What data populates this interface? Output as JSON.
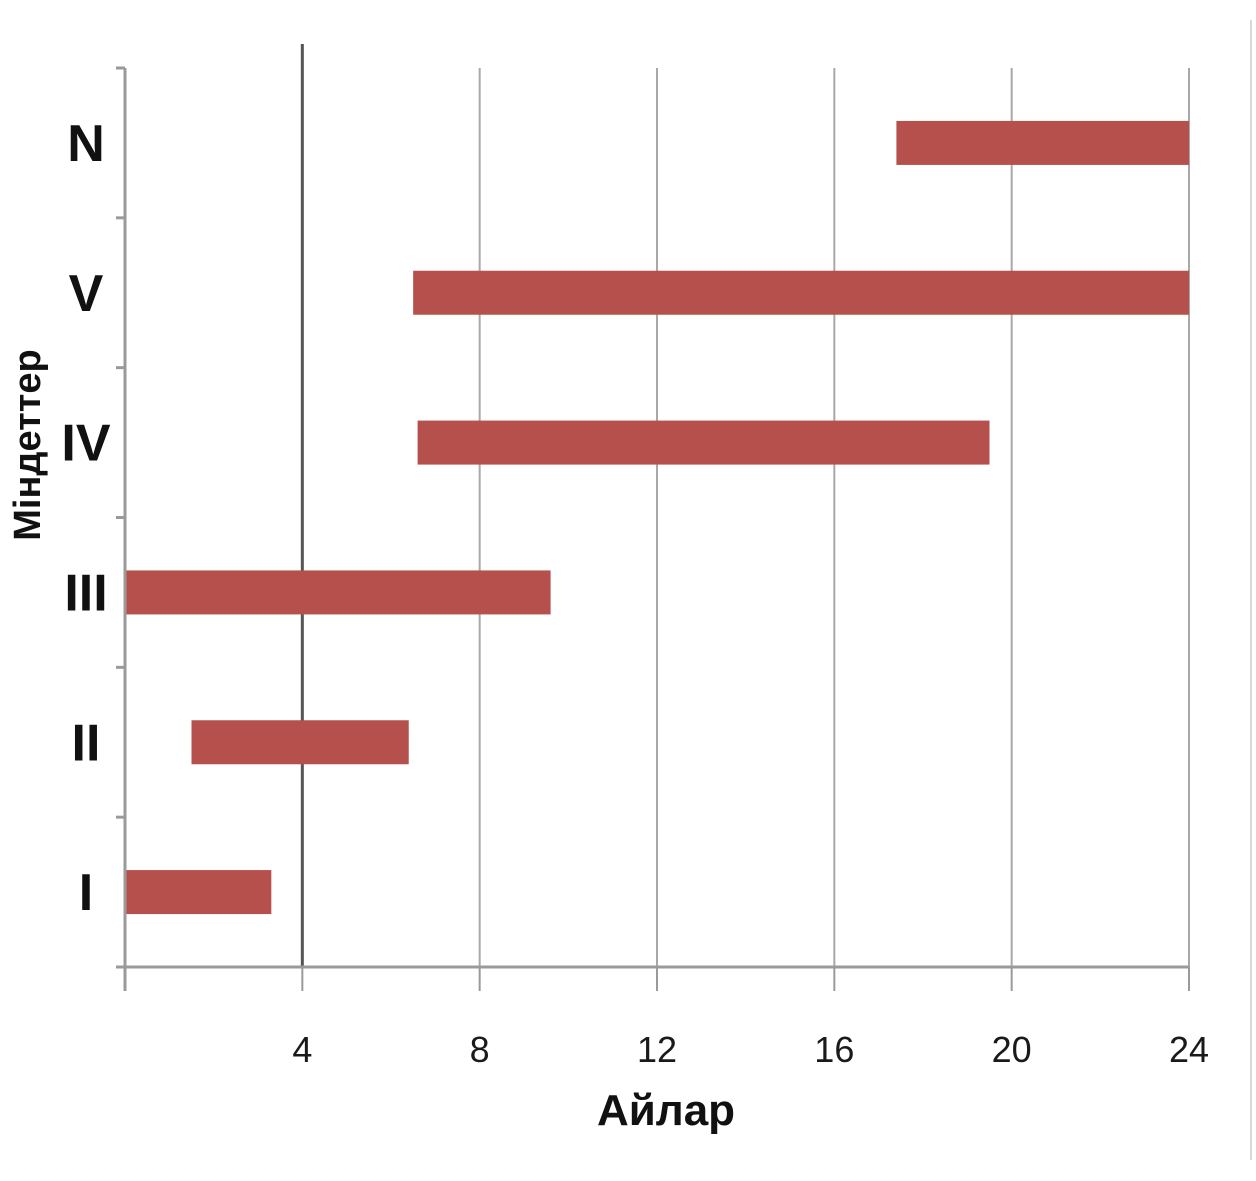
{
  "chart_data": {
    "type": "bar",
    "orientation": "horizontal-range",
    "title": "",
    "xlabel": "Айлар",
    "ylabel": "Міндеттер",
    "xlim": [
      0,
      24
    ],
    "x_ticks": [
      4,
      8,
      12,
      16,
      20,
      24
    ],
    "grid": true,
    "categories": [
      "I",
      "II",
      "III",
      "IV",
      "V",
      "N"
    ],
    "ranges": [
      {
        "category": "I",
        "start": 0,
        "end": 3.3
      },
      {
        "category": "II",
        "start": 1.5,
        "end": 6.4
      },
      {
        "category": "III",
        "start": 0,
        "end": 9.6
      },
      {
        "category": "IV",
        "start": 6.6,
        "end": 19.5
      },
      {
        "category": "V",
        "start": 6.5,
        "end": 24
      },
      {
        "category": "N",
        "start": 17.4,
        "end": 24
      }
    ],
    "colors": {
      "bar": "#b5504c",
      "grid": "#a8a8a8",
      "axis": "#9a9a9a",
      "emphasis_line": "#555555"
    }
  }
}
